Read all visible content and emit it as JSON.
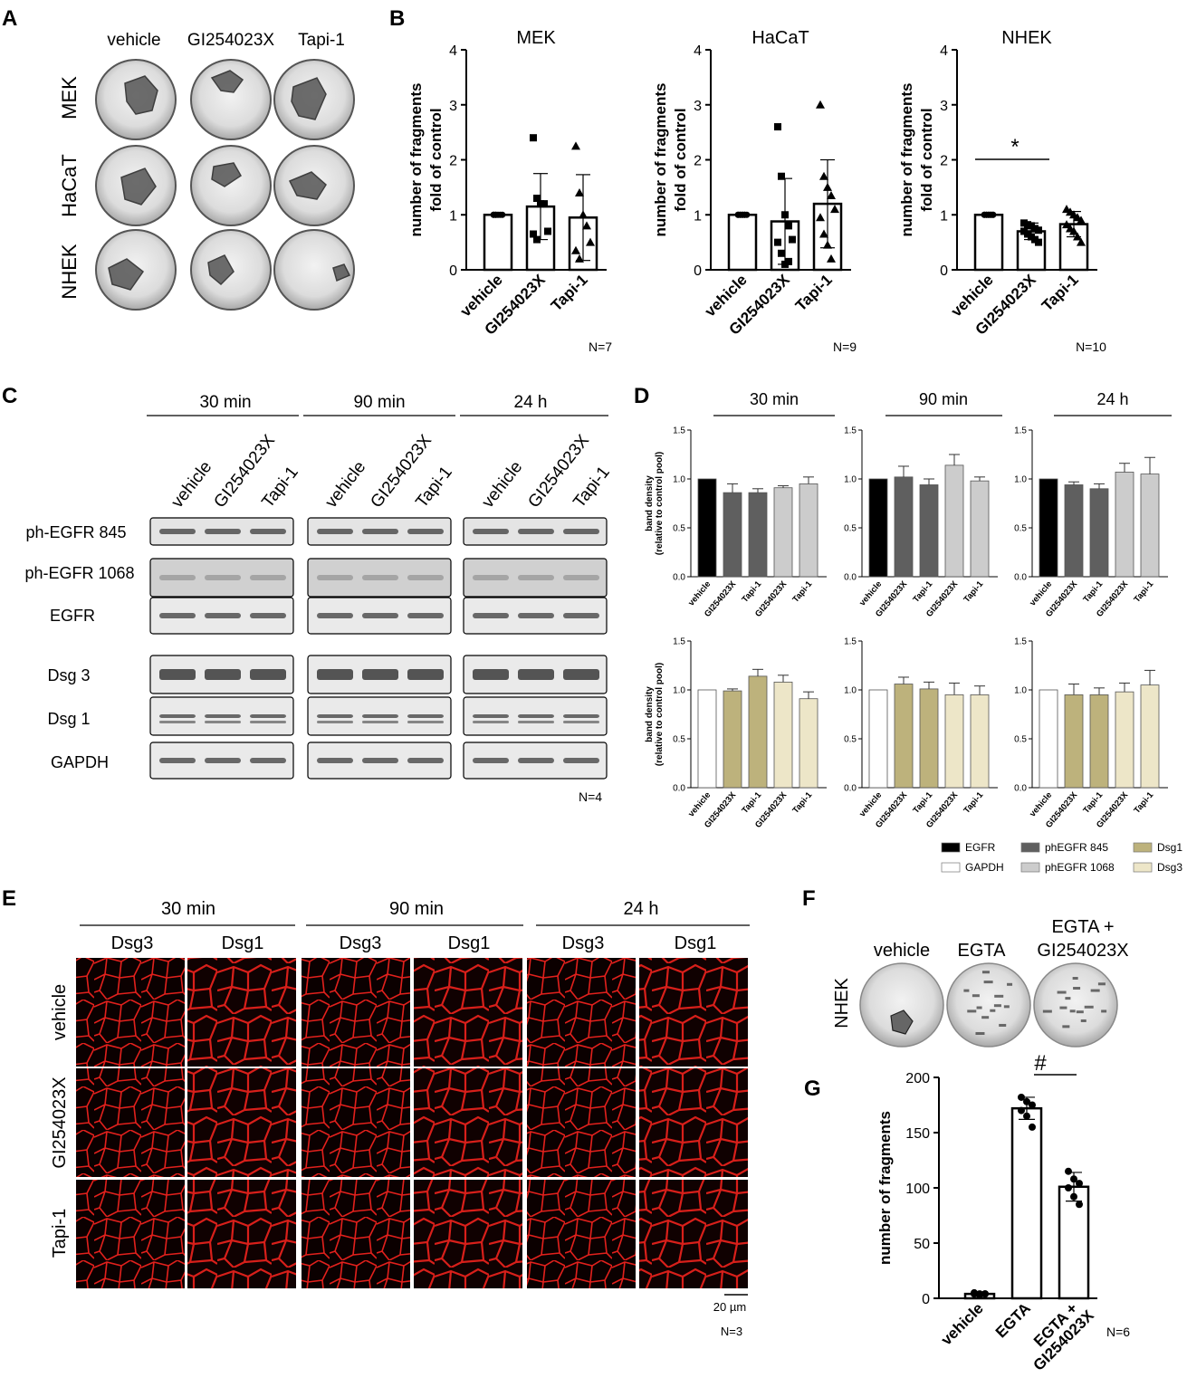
{
  "panel_letters": {
    "A": "A",
    "B": "B",
    "C": "C",
    "D": "D",
    "E": "E",
    "F": "F",
    "G": "G"
  },
  "panelA": {
    "col_labels": [
      "vehicle",
      "GI254023X",
      "Tapi-1"
    ],
    "row_labels": [
      "MEK",
      "HaCaT",
      "NHEK"
    ]
  },
  "panelB": {
    "ylabel_line1": "number of fragments",
    "ylabel_line2": "fold of control",
    "categories": [
      "vehicle",
      "GI254023X",
      "Tapi-1"
    ],
    "sig_star": "*"
  },
  "panelC": {
    "timepoints": [
      "30 min",
      "90 min",
      "24 h"
    ],
    "lanes": [
      "vehicle",
      "GI254023X",
      "Tapi-1"
    ],
    "rows": [
      "ph-EGFR 845",
      "ph-EGFR 1068",
      "EGFR",
      "Dsg 3",
      "Dsg 1",
      "GAPDH"
    ],
    "n": "N=4"
  },
  "panelD": {
    "timepoints": [
      "30 min",
      "90 min",
      "24 h"
    ],
    "ylabel_line1": "band density",
    "ylabel_line2": "(relative to control pool)",
    "categories": [
      "vehicle",
      "GI254023X",
      "Tapi-1",
      "GI254023X",
      "Tapi-1"
    ],
    "legend": [
      {
        "label": "EGFR",
        "color": "#000000"
      },
      {
        "label": "phEGFR 845",
        "color": "#5f5f5f"
      },
      {
        "label": "Dsg1",
        "color": "#bdb27c"
      },
      {
        "label": "GAPDH",
        "color": "#ffffff"
      },
      {
        "label": "phEGFR 1068",
        "color": "#cccccc"
      },
      {
        "label": "Dsg3",
        "color": "#ede6c8"
      }
    ]
  },
  "panelE": {
    "timepoints": [
      "30 min",
      "90 min",
      "24 h"
    ],
    "markers": [
      "Dsg3",
      "Dsg1",
      "Dsg3",
      "Dsg1",
      "Dsg3",
      "Dsg1"
    ],
    "row_labels": [
      "vehicle",
      "GI254023X",
      "Tapi-1"
    ],
    "scalebar": "20 µm",
    "n": "N=3"
  },
  "panelF": {
    "col_labels": [
      "vehicle",
      "EGTA",
      "EGTA +",
      "GI254023X"
    ],
    "row_label": "NHEK"
  },
  "chart_data": [
    {
      "type": "bar",
      "title": "MEK",
      "categories": [
        "vehicle",
        "GI254023X",
        "Tapi-1"
      ],
      "values": [
        1.0,
        1.15,
        0.95
      ],
      "error": [
        0.0,
        0.6,
        0.78
      ],
      "ylabel": "number of fragments fold of control",
      "ylim": [
        0,
        4
      ],
      "yticks": [
        0,
        1,
        2,
        3,
        4
      ],
      "n": "N=7",
      "points": [
        [
          1,
          1,
          1,
          1,
          1,
          1,
          1
        ],
        [
          2.4,
          1.3,
          1.2,
          1.2,
          0.7,
          0.65,
          0.55
        ],
        [
          2.25,
          1.4,
          1.0,
          0.8,
          0.5,
          0.35,
          0.2
        ]
      ]
    },
    {
      "type": "bar",
      "title": "HaCaT",
      "categories": [
        "vehicle",
        "GI254023X",
        "Tapi-1"
      ],
      "values": [
        1.0,
        0.88,
        1.2
      ],
      "error": [
        0.0,
        0.78,
        0.8
      ],
      "ylabel": "number of fragments fold of control",
      "ylim": [
        0,
        4
      ],
      "yticks": [
        0,
        1,
        2,
        3,
        4
      ],
      "n": "N=9",
      "points": [
        [
          1,
          1,
          1,
          1,
          1,
          1,
          1,
          1,
          1
        ],
        [
          2.6,
          1.7,
          1.0,
          0.8,
          0.55,
          0.5,
          0.3,
          0.1,
          0.15
        ],
        [
          3.0,
          1.7,
          1.5,
          1.35,
          1.1,
          0.95,
          0.65,
          0.45,
          0.2
        ]
      ]
    },
    {
      "type": "bar",
      "title": "NHEK",
      "categories": [
        "vehicle",
        "GI254023X",
        "Tapi-1"
      ],
      "values": [
        1.0,
        0.7,
        0.83
      ],
      "error": [
        0.0,
        0.15,
        0.23
      ],
      "ylabel": "number of fragments fold of control",
      "ylim": [
        0,
        4
      ],
      "yticks": [
        0,
        1,
        2,
        3,
        4
      ],
      "n": "N=10",
      "points": [
        [
          1,
          1,
          1,
          1,
          1,
          1,
          1,
          1,
          1,
          1
        ],
        [
          0.85,
          0.82,
          0.8,
          0.75,
          0.72,
          0.7,
          0.65,
          0.6,
          0.55,
          0.5
        ],
        [
          1.1,
          1.05,
          1.0,
          0.95,
          0.9,
          0.82,
          0.75,
          0.7,
          0.6,
          0.5
        ]
      ]
    },
    {
      "type": "bar",
      "title": "30 min",
      "categories": [
        "vehicle",
        "GI254023X",
        "Tapi-1",
        "GI254023X",
        "Tapi-1"
      ],
      "values": [
        1.0,
        0.86,
        0.86,
        0.91,
        0.95
      ],
      "error": [
        0,
        0.09,
        0.04,
        0.02,
        0.07
      ],
      "colors": [
        "#000000",
        "#5f5f5f",
        "#5f5f5f",
        "#cccccc",
        "#cccccc"
      ],
      "ylim": [
        0,
        1.5
      ],
      "yticks": [
        0.0,
        0.5,
        1.0,
        1.5
      ]
    },
    {
      "type": "bar",
      "title": "90 min",
      "categories": [
        "vehicle",
        "GI254023X",
        "Tapi-1",
        "GI254023X",
        "Tapi-1"
      ],
      "values": [
        1.0,
        1.02,
        0.94,
        1.14,
        0.98
      ],
      "error": [
        0,
        0.11,
        0.06,
        0.11,
        0.04
      ],
      "colors": [
        "#000000",
        "#5f5f5f",
        "#5f5f5f",
        "#cccccc",
        "#cccccc"
      ],
      "ylim": [
        0,
        1.5
      ],
      "yticks": [
        0.0,
        0.5,
        1.0,
        1.5
      ]
    },
    {
      "type": "bar",
      "title": "24 h",
      "categories": [
        "vehicle",
        "GI254023X",
        "Tapi-1",
        "GI254023X",
        "Tapi-1"
      ],
      "values": [
        1.0,
        0.94,
        0.9,
        1.07,
        1.05
      ],
      "error": [
        0,
        0.03,
        0.05,
        0.09,
        0.17
      ],
      "colors": [
        "#000000",
        "#5f5f5f",
        "#5f5f5f",
        "#cccccc",
        "#cccccc"
      ],
      "ylim": [
        0,
        1.5
      ],
      "yticks": [
        0.0,
        0.5,
        1.0,
        1.5
      ]
    },
    {
      "type": "bar",
      "categories": [
        "vehicle",
        "GI254023X",
        "Tapi-1",
        "GI254023X",
        "Tapi-1"
      ],
      "values": [
        1.0,
        0.99,
        1.14,
        1.08,
        0.91
      ],
      "error": [
        0,
        0.02,
        0.07,
        0.07,
        0.07
      ],
      "colors": [
        "#ffffff",
        "#bdb27c",
        "#bdb27c",
        "#ede6c8",
        "#ede6c8"
      ],
      "ylim": [
        0,
        1.5
      ],
      "yticks": [
        0.0,
        0.5,
        1.0,
        1.5
      ]
    },
    {
      "type": "bar",
      "categories": [
        "vehicle",
        "GI254023X",
        "Tapi-1",
        "GI254023X",
        "Tapi-1"
      ],
      "values": [
        1.0,
        1.06,
        1.01,
        0.95,
        0.95
      ],
      "error": [
        0,
        0.07,
        0.07,
        0.12,
        0.09
      ],
      "colors": [
        "#ffffff",
        "#bdb27c",
        "#bdb27c",
        "#ede6c8",
        "#ede6c8"
      ],
      "ylim": [
        0,
        1.5
      ],
      "yticks": [
        0.0,
        0.5,
        1.0,
        1.5
      ]
    },
    {
      "type": "bar",
      "categories": [
        "vehicle",
        "GI254023X",
        "Tapi-1",
        "GI254023X",
        "Tapi-1"
      ],
      "values": [
        1.0,
        0.95,
        0.95,
        0.98,
        1.05
      ],
      "error": [
        0,
        0.11,
        0.07,
        0.09,
        0.15
      ],
      "colors": [
        "#ffffff",
        "#bdb27c",
        "#bdb27c",
        "#ede6c8",
        "#ede6c8"
      ],
      "ylim": [
        0,
        1.5
      ],
      "yticks": [
        0.0,
        0.5,
        1.0,
        1.5
      ]
    },
    {
      "type": "bar",
      "categories": [
        "vehicle",
        "EGTA",
        "EGTA + GI254023X"
      ],
      "values": [
        4,
        172,
        101
      ],
      "error": [
        1,
        10,
        13
      ],
      "ylabel": "number of fragments",
      "ylim": [
        0,
        200
      ],
      "yticks": [
        0,
        50,
        100,
        150,
        200
      ],
      "n": "N=6",
      "sig": "#",
      "points": [
        [
          5,
          4,
          4,
          4,
          3,
          4
        ],
        [
          182,
          178,
          175,
          170,
          165,
          155
        ],
        [
          115,
          108,
          104,
          100,
          92,
          85
        ]
      ]
    }
  ]
}
